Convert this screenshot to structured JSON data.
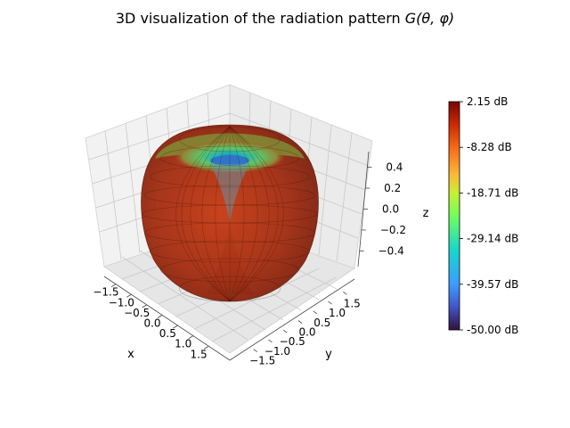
{
  "chart_data": {
    "type": "surface",
    "title": "3D visualization of the radiation pattern",
    "title_math": "G(θ, φ)",
    "pattern": "dipole-like, omnidirectional in φ, nulls along ±z axis",
    "xlabel": "x",
    "ylabel": "y",
    "zlabel": "z",
    "x_ticks": [
      "−1.5",
      "−1.0",
      "−0.5",
      "0.0",
      "0.5",
      "1.0",
      "1.5"
    ],
    "y_ticks": [
      "−1.5",
      "−1.0",
      "−0.5",
      "0.0",
      "0.5",
      "1.0",
      "1.5"
    ],
    "z_ticks": [
      "−0.4",
      "−0.2",
      "0.0",
      "0.2",
      "0.4"
    ],
    "xlim": [
      -1.7,
      1.7
    ],
    "ylim": [
      -1.7,
      1.7
    ],
    "zlim": [
      -0.55,
      0.55
    ],
    "max_gain_db": 2.15,
    "min_gain_db": -50.0,
    "colorbar": {
      "colormap": "turbo",
      "ticks": [
        "2.15 dB",
        "-8.28 dB",
        "-18.71 dB",
        "-29.14 dB",
        "-39.57 dB",
        "-50.00 dB"
      ],
      "range_db": [
        -50.0,
        2.15
      ]
    },
    "grid": true
  }
}
